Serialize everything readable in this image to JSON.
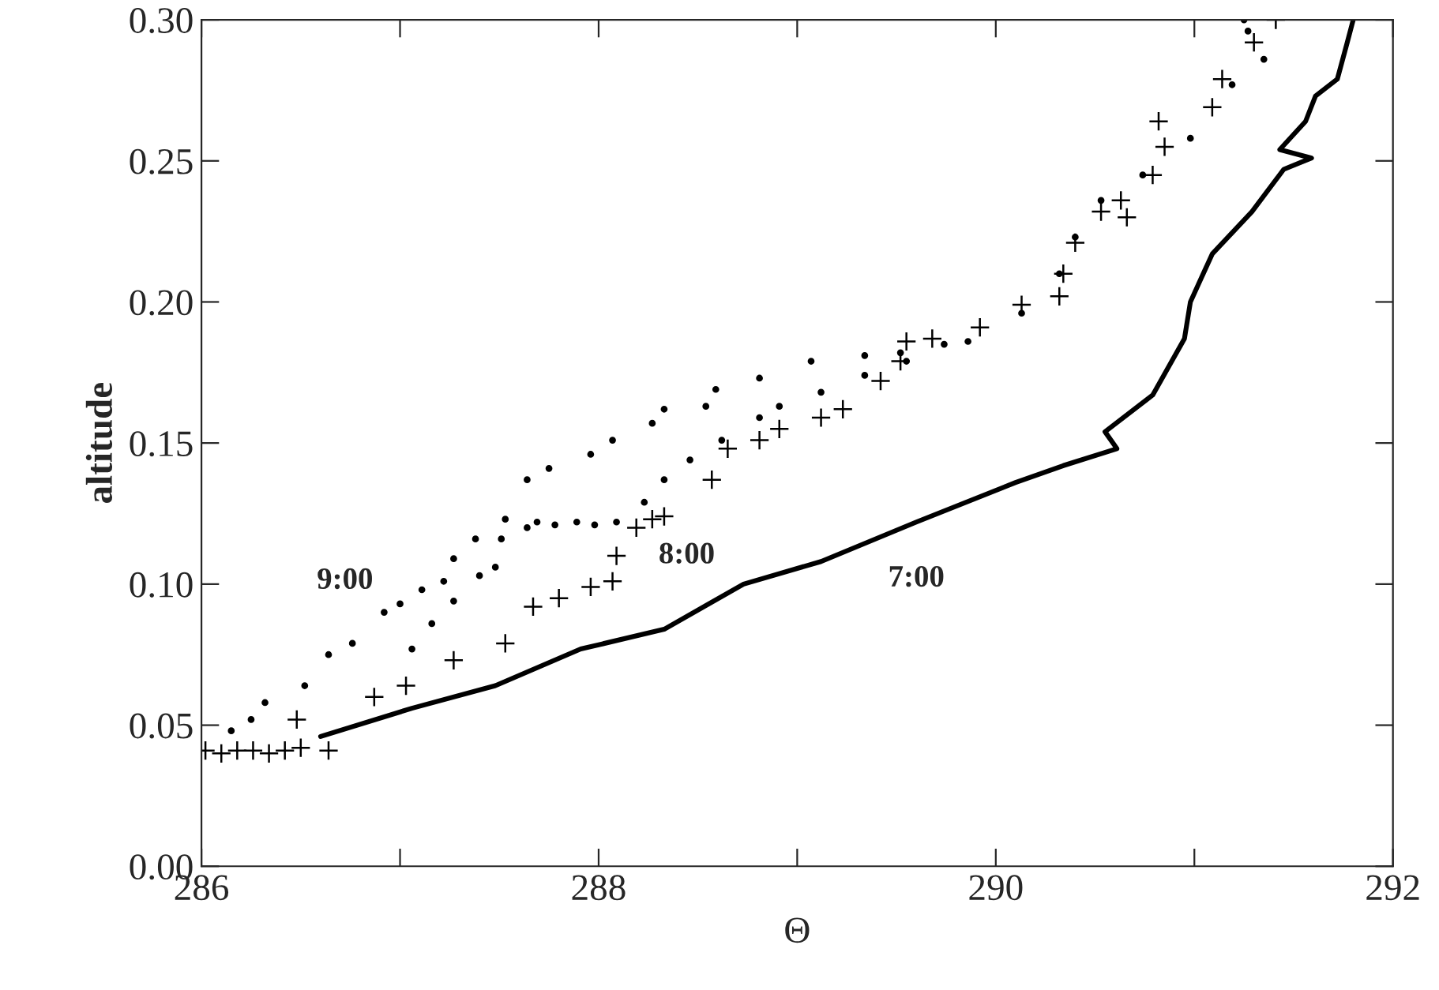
{
  "chart_data": {
    "type": "line",
    "xlabel": "Θ",
    "ylabel": "altitude",
    "xlim": [
      286,
      292
    ],
    "ylim": [
      0,
      0.3
    ],
    "xticks": [
      286,
      {
        "value": 287,
        "label": null
      },
      288,
      {
        "value": 289,
        "label": null
      },
      290,
      {
        "value": 291,
        "label": null
      },
      292
    ],
    "yticks": [
      {
        "value": 0,
        "label": "0.00"
      },
      {
        "value": 0.05,
        "label": "0.05"
      },
      {
        "value": 0.1,
        "label": "0.10"
      },
      {
        "value": 0.15,
        "label": "0.15"
      },
      {
        "value": 0.2,
        "label": "0.20"
      },
      {
        "value": 0.25,
        "label": "0.25"
      },
      {
        "value": 0.3,
        "label": "0.30"
      }
    ],
    "grid": false,
    "legend": false,
    "series": [
      {
        "name": "7:00",
        "color": "#000000",
        "line_style": "solid",
        "marker": "none",
        "x": [
          286.6,
          287.06,
          287.48,
          287.91,
          288.33,
          288.73,
          289.12,
          289.6,
          290.1,
          290.34,
          290.61,
          290.55,
          290.79,
          290.95,
          290.98,
          291.09,
          291.29,
          291.45,
          291.59,
          291.43,
          291.56,
          291.61,
          291.72,
          291.77,
          291.8
        ],
        "values": [
          0.046,
          0.056,
          0.064,
          0.077,
          0.084,
          0.1,
          0.108,
          0.122,
          0.136,
          0.142,
          0.148,
          0.154,
          0.167,
          0.187,
          0.2,
          0.217,
          0.232,
          0.247,
          0.251,
          0.254,
          0.264,
          0.273,
          0.279,
          0.292,
          0.3
        ]
      },
      {
        "type": "scatter",
        "name": "8:00",
        "color": "#000000",
        "marker": "cross",
        "x": [
          286.02,
          286.1,
          286.18,
          286.26,
          286.34,
          286.42,
          286.5,
          286.64,
          286.48,
          286.87,
          287.03,
          287.27,
          287.53,
          287.67,
          287.8,
          287.96,
          288.07,
          288.09,
          288.19,
          288.27,
          288.33,
          288.57,
          288.65,
          288.81,
          288.91,
          289.12,
          289.23,
          289.42,
          289.52,
          289.55,
          289.68,
          289.92,
          290.13,
          290.32,
          290.34,
          290.4,
          290.53,
          290.66,
          290.63,
          290.79,
          290.85,
          290.82,
          291.09,
          291.14,
          291.3,
          291.41
        ],
        "values": [
          0.041,
          0.04,
          0.041,
          0.041,
          0.04,
          0.041,
          0.042,
          0.041,
          0.052,
          0.06,
          0.064,
          0.073,
          0.079,
          0.092,
          0.095,
          0.099,
          0.101,
          0.11,
          0.12,
          0.123,
          0.124,
          0.137,
          0.148,
          0.151,
          0.155,
          0.159,
          0.162,
          0.172,
          0.179,
          0.186,
          0.187,
          0.191,
          0.199,
          0.202,
          0.21,
          0.221,
          0.232,
          0.23,
          0.236,
          0.245,
          0.255,
          0.264,
          0.269,
          0.279,
          0.292,
          0.3
        ]
      },
      {
        "type": "scatter",
        "name": "9:00",
        "color": "#000000",
        "marker": "circle",
        "x": [
          286.15,
          286.25,
          286.32,
          286.52,
          286.64,
          286.76,
          286.92,
          287.0,
          287.11,
          287.22,
          287.27,
          287.38,
          287.53,
          287.64,
          287.75,
          287.96,
          288.07,
          288.27,
          288.33,
          288.54,
          288.59,
          288.81,
          289.07,
          289.34,
          289.52,
          289.86,
          290.13,
          290.32,
          290.4,
          290.53,
          290.74,
          290.98,
          291.19,
          291.35,
          291.27,
          291.25,
          287.06,
          287.16,
          287.27,
          287.4,
          287.48,
          287.51,
          287.64,
          287.69,
          287.78,
          287.89,
          287.98,
          288.09,
          288.23,
          288.33,
          288.46,
          288.62,
          288.81,
          288.91,
          289.12,
          289.34,
          289.55,
          289.74
        ],
        "values": [
          0.048,
          0.052,
          0.058,
          0.064,
          0.075,
          0.079,
          0.09,
          0.093,
          0.098,
          0.101,
          0.109,
          0.116,
          0.123,
          0.137,
          0.141,
          0.146,
          0.151,
          0.157,
          0.162,
          0.163,
          0.169,
          0.173,
          0.179,
          0.181,
          0.182,
          0.186,
          0.196,
          0.21,
          0.223,
          0.236,
          0.245,
          0.258,
          0.277,
          0.286,
          0.296,
          0.3,
          0.077,
          0.086,
          0.094,
          0.103,
          0.106,
          0.116,
          0.12,
          0.122,
          0.121,
          0.122,
          0.121,
          0.122,
          0.129,
          0.137,
          0.144,
          0.151,
          0.159,
          0.163,
          0.168,
          0.174,
          0.179,
          0.185
        ]
      }
    ]
  }
}
